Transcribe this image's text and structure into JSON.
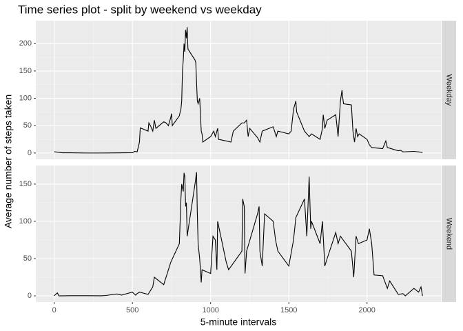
{
  "chart_data": {
    "type": "line",
    "title": "Time series plot - split by weekend vs weekday",
    "xlabel": "5-minute intervals",
    "ylabel": "Average number of steps taken",
    "xlim": [
      -117.75,
      2472.75
    ],
    "xticks": [
      0,
      500,
      1000,
      1500,
      2000
    ],
    "grid": true,
    "color": "#000000",
    "panels": [
      {
        "name": "Weekday",
        "ylim": [
          -11.5,
          241.9
        ],
        "yticks": [
          0,
          50,
          100,
          150,
          200
        ],
        "x": [
          0,
          50,
          100,
          200,
          300,
          400,
          500,
          515,
          530,
          545,
          550,
          600,
          605,
          615,
          630,
          640,
          650,
          700,
          715,
          730,
          740,
          745,
          750,
          755,
          800,
          805,
          810,
          815,
          820,
          825,
          830,
          835,
          840,
          845,
          850,
          855,
          900,
          905,
          910,
          915,
          920,
          930,
          940,
          945,
          950,
          1000,
          1010,
          1020,
          1030,
          1045,
          1050,
          1100,
          1130,
          1145,
          1200,
          1215,
          1230,
          1240,
          1250,
          1300,
          1315,
          1330,
          1400,
          1420,
          1430,
          1500,
          1515,
          1530,
          1540,
          1545,
          1550,
          1600,
          1630,
          1645,
          1700,
          1715,
          1720,
          1730,
          1745,
          1800,
          1815,
          1830,
          1840,
          1845,
          1850,
          1900,
          1910,
          1920,
          1930,
          1940,
          1950,
          2000,
          2015,
          2030,
          2100,
          2120,
          2130,
          2200,
          2215,
          2230,
          2300,
          2330,
          2355
        ],
        "values": [
          2.3,
          0.4,
          0.4,
          0,
          0,
          0.2,
          0.5,
          3,
          2,
          20,
          46,
          40,
          55,
          50,
          40,
          60,
          45,
          57,
          55,
          50,
          60,
          65,
          72,
          50,
          68,
          75,
          80,
          95,
          150,
          170,
          200,
          185,
          225,
          210,
          230,
          190,
          170,
          165,
          130,
          95,
          90,
          100,
          40,
          35,
          20,
          30,
          35,
          40,
          30,
          45,
          25,
          22,
          20,
          40,
          55,
          55,
          60,
          30,
          45,
          28,
          20,
          40,
          48,
          30,
          40,
          35,
          40,
          80,
          90,
          95,
          75,
          40,
          30,
          35,
          25,
          45,
          70,
          45,
          60,
          70,
          30,
          95,
          115,
          100,
          90,
          88,
          40,
          20,
          45,
          30,
          35,
          25,
          15,
          10,
          8,
          22,
          10,
          4,
          5,
          2,
          3,
          2,
          1
        ]
      },
      {
        "name": "Weekend",
        "ylim": [
          -8.3,
          174.9
        ],
        "yticks": [
          0,
          50,
          100,
          150
        ],
        "x": [
          0,
          20,
          30,
          100,
          200,
          300,
          330,
          400,
          430,
          500,
          515,
          520,
          530,
          545,
          600,
          630,
          640,
          700,
          715,
          730,
          745,
          800,
          810,
          815,
          825,
          830,
          835,
          840,
          845,
          850,
          900,
          910,
          915,
          920,
          930,
          940,
          945,
          1000,
          1015,
          1030,
          1040,
          1045,
          1100,
          1115,
          1200,
          1205,
          1215,
          1220,
          1230,
          1300,
          1310,
          1315,
          1330,
          1345,
          1400,
          1415,
          1430,
          1500,
          1530,
          1545,
          1600,
          1615,
          1630,
          1640,
          1645,
          1700,
          1715,
          1730,
          1745,
          1800,
          1815,
          1830,
          1900,
          1915,
          1930,
          1945,
          2000,
          2015,
          2030,
          2045,
          2100,
          2130,
          2145,
          2200,
          2230,
          2245,
          2300,
          2330,
          2345,
          2355
        ],
        "values": [
          0.2,
          4,
          0,
          0.2,
          0.2,
          0.1,
          0.5,
          2.5,
          1,
          5,
          2,
          1,
          3,
          5,
          2,
          12,
          25,
          15,
          25,
          35,
          45,
          70,
          130,
          150,
          140,
          165,
          160,
          120,
          125,
          80,
          150,
          166,
          110,
          70,
          50,
          18,
          35,
          30,
          80,
          75,
          35,
          100,
          45,
          35,
          60,
          130,
          120,
          30,
          60,
          110,
          120,
          60,
          40,
          110,
          100,
          75,
          60,
          40,
          75,
          105,
          130,
          80,
          160,
          90,
          100,
          70,
          100,
          40,
          50,
          85,
          70,
          80,
          60,
          25,
          80,
          70,
          75,
          90,
          70,
          28,
          27,
          10,
          20,
          2,
          3,
          0,
          10,
          5,
          12,
          0
        ]
      }
    ]
  }
}
